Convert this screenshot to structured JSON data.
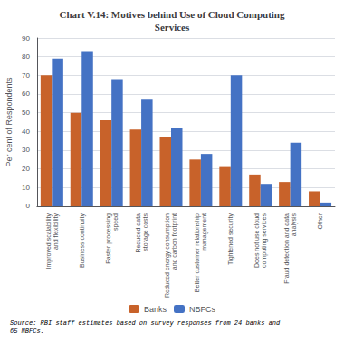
{
  "chart_data": {
    "type": "bar",
    "title": "Chart V.14: Motives behind Use of Cloud Computing\nServices",
    "categories": [
      "Improved scalability\nand flexibility",
      "Business continuity",
      "Faster processing\nspeed",
      "Reduced data\nstorage costs",
      "Reduced energy consumption\nand carbon footprint",
      "Better customer relationship\nmanagement",
      "Tightened security",
      "Does not use cloud\ncomputing services",
      "Fraud detection and data\nanalysis",
      "Other"
    ],
    "series": [
      {
        "name": "Banks",
        "color": "#c8622a",
        "values": [
          70,
          50,
          46,
          41,
          37,
          25,
          21,
          17,
          13,
          8
        ]
      },
      {
        "name": "NBFCs",
        "color": "#4472c4",
        "values": [
          79,
          83,
          68,
          57,
          42,
          28,
          70,
          12,
          34,
          2
        ]
      }
    ],
    "ylabel": "Per cent of Respondents",
    "ylim": [
      0,
      90
    ],
    "yticks": [
      0,
      10,
      20,
      30,
      40,
      50,
      60,
      70,
      80,
      90
    ],
    "grid": true,
    "legend": "bottom",
    "source": "Source: RBI staff estimates based on survey responses from 24 banks and\n65 NBFCs."
  }
}
